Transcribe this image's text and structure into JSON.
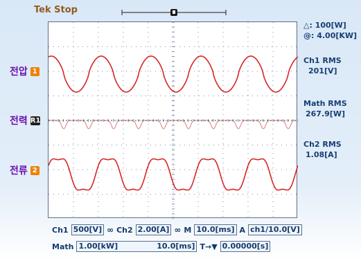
{
  "header": {
    "status": "Tek Stop"
  },
  "readouts": {
    "delta": "△:  100[W]",
    "at": "@:  4.00[KW]",
    "ch1_label": "Ch1 RMS",
    "ch1_value": "201[V]",
    "math_label": "Math RMS",
    "math_value": "267.9[W]",
    "ch2_label": "Ch2 RMS",
    "ch2_value": "1.08[A]"
  },
  "channels": [
    {
      "label": "전압",
      "badge": "1"
    },
    {
      "label": "전력",
      "badge": "R1"
    },
    {
      "label": "전류",
      "badge": "2"
    }
  ],
  "footer": {
    "row1": {
      "ch1_prefix": "Ch1",
      "ch1_value": "500[V]",
      "coupling1": "∞",
      "ch2_prefix": "Ch2",
      "ch2_value": "2.00[A]",
      "coupling2": "∞",
      "m_prefix": "M",
      "m_value": "10.0[ms]",
      "a_prefix": "A",
      "a_value": "ch1/10.0[V]"
    },
    "row2": {
      "math_prefix": "Math",
      "math_value": "1.00[kW]",
      "time_value": "10.0[ms]",
      "trigger_prefix": "T→▼",
      "trigger_value": "0.00000[s]"
    }
  },
  "colors": {
    "trace_red": "#d62525",
    "trace_pink": "#e58f8f",
    "grid": "#7d8da6",
    "screen_border": "#5c6e88"
  }
}
